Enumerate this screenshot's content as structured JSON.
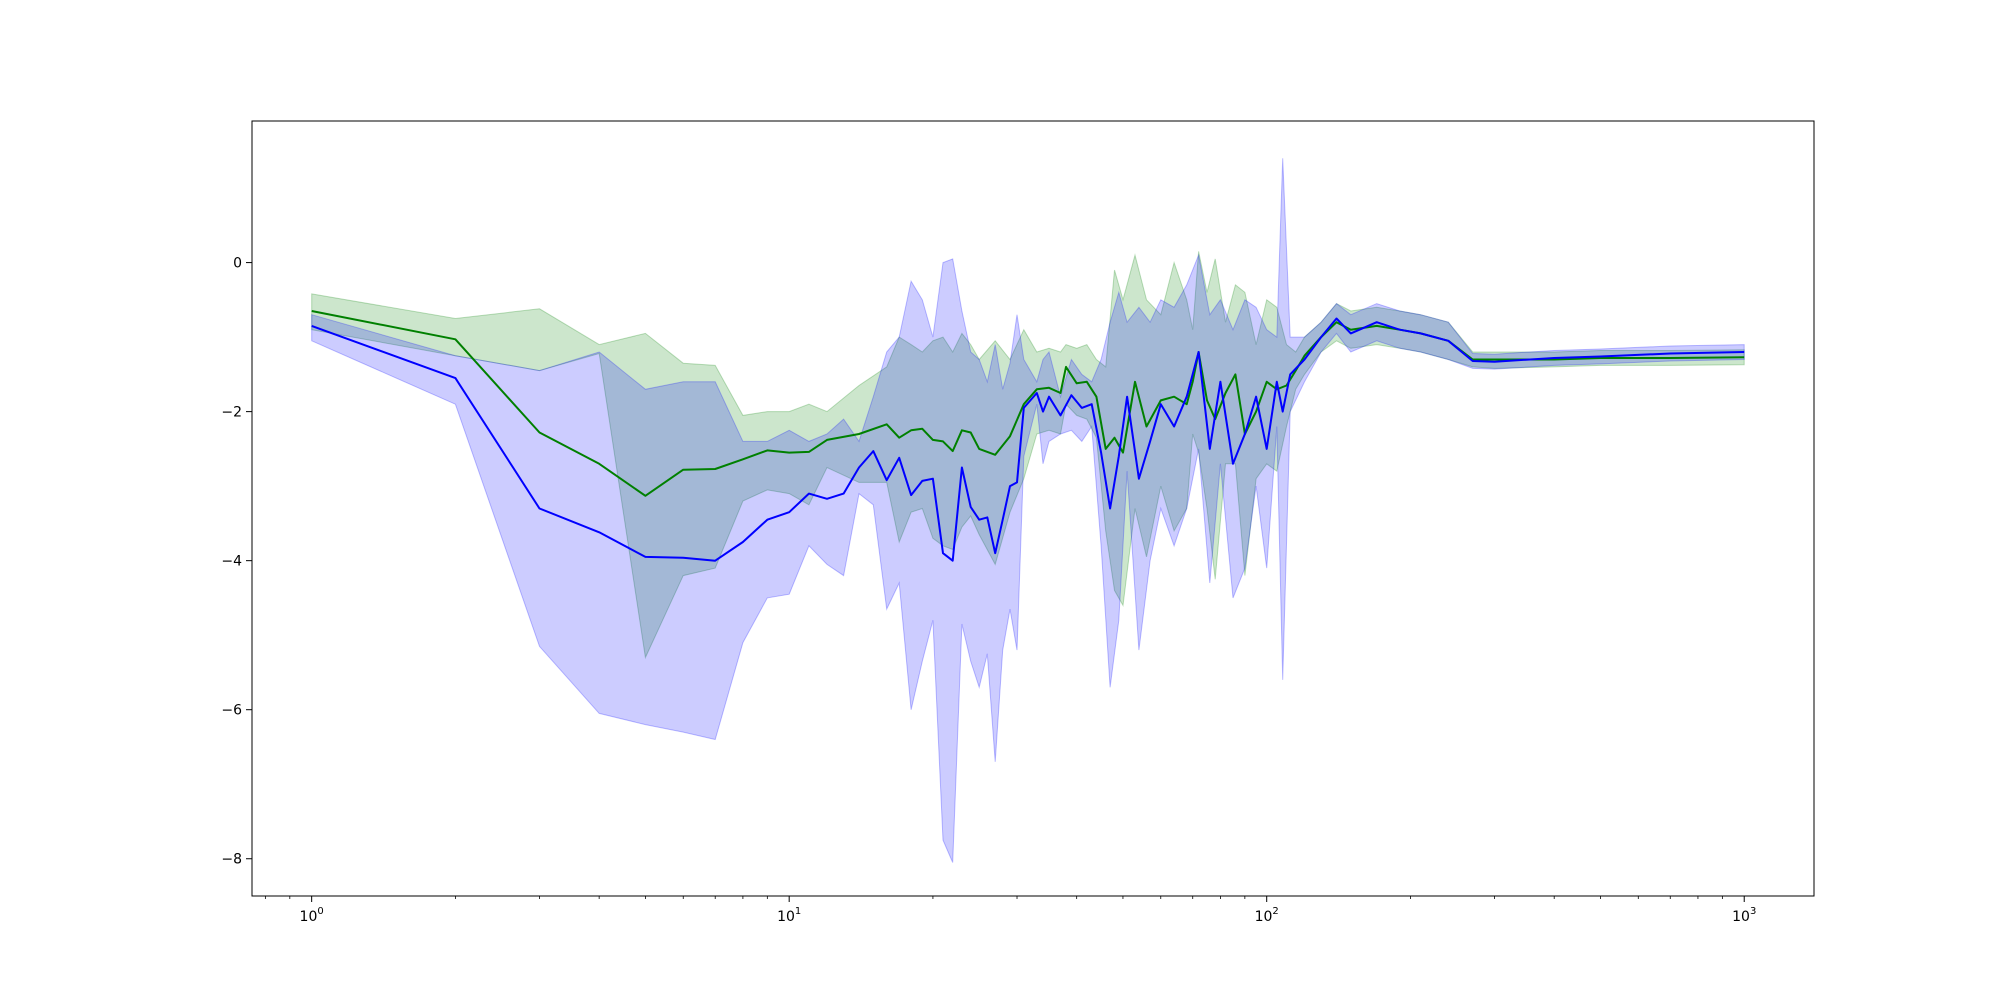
{
  "chart_data": {
    "type": "line",
    "title": "",
    "xlabel": "",
    "ylabel": "",
    "xscale": "log",
    "xlim": [
      0.75,
      1400
    ],
    "ylim": [
      -8.5,
      1.9
    ],
    "grid": false,
    "legend": "none",
    "x_ticks": [
      {
        "value": 1,
        "base": "10",
        "exp": "0"
      },
      {
        "value": 10,
        "base": "10",
        "exp": "1"
      },
      {
        "value": 100,
        "base": "10",
        "exp": "2"
      },
      {
        "value": 1000,
        "base": "10",
        "exp": "3"
      }
    ],
    "y_ticks": [
      {
        "value": 0,
        "label": "0"
      },
      {
        "value": -2,
        "label": "−2"
      },
      {
        "value": -4,
        "label": "−4"
      },
      {
        "value": -6,
        "label": "−6"
      },
      {
        "value": -8,
        "label": "−8"
      }
    ],
    "series": [
      {
        "color": "#008000",
        "band_color": "#008000",
        "band_opacity": 0.2,
        "points": [
          [
            1,
            -0.65,
            -0.42,
            -0.9
          ],
          [
            2,
            -1.03,
            -0.75,
            -1.25
          ],
          [
            3,
            -2.28,
            -0.62,
            -1.45
          ],
          [
            4,
            -2.7,
            -1.1,
            -1.22
          ],
          [
            5,
            -3.13,
            -0.95,
            -5.3
          ],
          [
            6,
            -2.78,
            -1.35,
            -4.2
          ],
          [
            7,
            -2.77,
            -1.38,
            -4.1
          ],
          [
            8,
            -2.64,
            -2.05,
            -3.2
          ],
          [
            9,
            -2.52,
            -2.0,
            -3.05
          ],
          [
            10,
            -2.55,
            -2.0,
            -3.1
          ],
          [
            11,
            -2.54,
            -1.9,
            -3.25
          ],
          [
            12,
            -2.38,
            -2.0,
            -2.75
          ],
          [
            14,
            -2.3,
            -1.65,
            -2.95
          ],
          [
            16,
            -2.17,
            -1.4,
            -2.95
          ],
          [
            17,
            -2.35,
            -1.0,
            -3.75
          ],
          [
            18,
            -2.25,
            -1.1,
            -3.35
          ],
          [
            19,
            -2.23,
            -1.2,
            -3.3
          ],
          [
            20,
            -2.38,
            -1.05,
            -3.7
          ],
          [
            21,
            -2.4,
            -1.0,
            -3.8
          ],
          [
            22,
            -2.53,
            -1.2,
            -3.85
          ],
          [
            23,
            -2.25,
            -0.95,
            -3.55
          ],
          [
            24,
            -2.28,
            -1.1,
            -3.4
          ],
          [
            25,
            -2.5,
            -1.3,
            -3.65
          ],
          [
            27,
            -2.58,
            -1.05,
            -4.05
          ],
          [
            29,
            -2.33,
            -1.3,
            -3.35
          ],
          [
            31,
            -1.9,
            -0.9,
            -2.9
          ],
          [
            33,
            -1.7,
            -1.2,
            -2.3
          ],
          [
            35,
            -1.68,
            -1.15,
            -2.25
          ],
          [
            37,
            -1.75,
            -1.2,
            -2.3
          ],
          [
            38,
            -1.4,
            -1.1,
            -1.9
          ],
          [
            40,
            -1.62,
            -1.15,
            -2.05
          ],
          [
            42,
            -1.6,
            -1.1,
            -2.1
          ],
          [
            44,
            -1.8,
            -1.3,
            -2.35
          ],
          [
            46,
            -2.5,
            -1.4,
            -3.6
          ],
          [
            48,
            -2.35,
            -0.1,
            -4.4
          ],
          [
            50,
            -2.55,
            -0.5,
            -4.6
          ],
          [
            53,
            -1.6,
            0.1,
            -3.3
          ],
          [
            56,
            -2.2,
            -0.5,
            -3.95
          ],
          [
            60,
            -1.85,
            -0.7,
            -3.0
          ],
          [
            64,
            -1.8,
            0.0,
            -3.6
          ],
          [
            68,
            -1.9,
            -0.5,
            -3.3
          ],
          [
            70,
            -1.6,
            -0.9,
            -2.3
          ],
          [
            72,
            -1.2,
            0.15,
            -2.55
          ],
          [
            75,
            -1.85,
            -0.4,
            -3.3
          ],
          [
            78,
            -2.1,
            0.05,
            -4.25
          ],
          [
            82,
            -1.75,
            -0.8,
            -2.7
          ],
          [
            86,
            -1.5,
            -0.3,
            -2.7
          ],
          [
            90,
            -2.3,
            -0.4,
            -4.2
          ],
          [
            95,
            -2.0,
            -1.1,
            -2.9
          ],
          [
            100,
            -1.6,
            -0.5,
            -2.7
          ],
          [
            105,
            -1.7,
            -0.6,
            -2.8
          ],
          [
            110,
            -1.65,
            -1.1,
            -2.2
          ],
          [
            115,
            -1.45,
            -1.2,
            -1.7
          ],
          [
            120,
            -1.25,
            -1.0,
            -1.5
          ],
          [
            130,
            -1.0,
            -0.8,
            -1.2
          ],
          [
            140,
            -0.8,
            -0.55,
            -1.05
          ],
          [
            150,
            -0.9,
            -0.65,
            -1.15
          ],
          [
            170,
            -0.85,
            -0.6,
            -1.1
          ],
          [
            190,
            -0.9,
            -0.65,
            -1.15
          ],
          [
            210,
            -0.95,
            -0.7,
            -1.2
          ],
          [
            240,
            -1.05,
            -0.8,
            -1.3
          ],
          [
            270,
            -1.3,
            -1.2,
            -1.4
          ],
          [
            300,
            -1.3,
            -1.2,
            -1.42
          ],
          [
            400,
            -1.3,
            -1.2,
            -1.4
          ],
          [
            500,
            -1.28,
            -1.18,
            -1.38
          ],
          [
            700,
            -1.28,
            -1.18,
            -1.38
          ],
          [
            1000,
            -1.27,
            -1.17,
            -1.37
          ]
        ]
      },
      {
        "color": "#0000ff",
        "band_color": "#0000ff",
        "band_opacity": 0.2,
        "points": [
          [
            1,
            -0.85,
            -0.7,
            -1.05
          ],
          [
            2,
            -1.55,
            -1.25,
            -1.9
          ],
          [
            3,
            -3.3,
            -1.45,
            -5.15
          ],
          [
            4,
            -3.62,
            -1.2,
            -6.05
          ],
          [
            5,
            -3.95,
            -1.7,
            -6.2
          ],
          [
            6,
            -3.96,
            -1.6,
            -6.3
          ],
          [
            7,
            -4.0,
            -1.6,
            -6.4
          ],
          [
            8,
            -3.75,
            -2.4,
            -5.1
          ],
          [
            9,
            -3.45,
            -2.4,
            -4.5
          ],
          [
            10,
            -3.35,
            -2.25,
            -4.45
          ],
          [
            11,
            -3.1,
            -2.4,
            -3.8
          ],
          [
            12,
            -3.17,
            -2.3,
            -4.05
          ],
          [
            13,
            -3.1,
            -2.1,
            -4.2
          ],
          [
            14,
            -2.75,
            -2.4,
            -3.1
          ],
          [
            15,
            -2.53,
            -1.8,
            -3.25
          ],
          [
            16,
            -2.92,
            -1.2,
            -4.65
          ],
          [
            17,
            -2.62,
            -1.0,
            -4.3
          ],
          [
            18,
            -3.12,
            -0.25,
            -6.0
          ],
          [
            19,
            -2.93,
            -0.5,
            -5.35
          ],
          [
            20,
            -2.9,
            -1.0,
            -4.8
          ],
          [
            21,
            -3.9,
            0.0,
            -7.75
          ],
          [
            22,
            -4.0,
            0.05,
            -8.05
          ],
          [
            23,
            -2.75,
            -0.65,
            -4.85
          ],
          [
            24,
            -3.28,
            -1.2,
            -5.35
          ],
          [
            25,
            -3.45,
            -1.3,
            -5.7
          ],
          [
            26,
            -3.42,
            -1.6,
            -5.25
          ],
          [
            27,
            -3.9,
            -1.1,
            -6.7
          ],
          [
            28,
            -3.45,
            -1.7,
            -5.2
          ],
          [
            29,
            -3.0,
            -1.35,
            -4.65
          ],
          [
            30,
            -2.95,
            -0.7,
            -5.2
          ],
          [
            31,
            -1.95,
            -1.3,
            -2.6
          ],
          [
            33,
            -1.75,
            -1.6,
            -1.9
          ],
          [
            34,
            -2.0,
            -1.3,
            -2.7
          ],
          [
            35,
            -1.8,
            -1.2,
            -2.4
          ],
          [
            37,
            -2.05,
            -1.8,
            -2.3
          ],
          [
            39,
            -1.78,
            -1.3,
            -2.25
          ],
          [
            41,
            -1.95,
            -1.5,
            -2.4
          ],
          [
            43,
            -1.9,
            -1.6,
            -2.2
          ],
          [
            45,
            -2.55,
            -1.3,
            -3.8
          ],
          [
            47,
            -3.3,
            -0.8,
            -5.7
          ],
          [
            49,
            -2.6,
            -0.4,
            -4.8
          ],
          [
            51,
            -1.8,
            -0.8,
            -2.8
          ],
          [
            54,
            -2.9,
            -0.6,
            -5.2
          ],
          [
            57,
            -2.4,
            -0.8,
            -4.0
          ],
          [
            60,
            -1.9,
            -0.5,
            -3.3
          ],
          [
            64,
            -2.2,
            -0.6,
            -3.8
          ],
          [
            68,
            -1.8,
            -0.3,
            -3.3
          ],
          [
            72,
            -1.2,
            0.1,
            -2.5
          ],
          [
            76,
            -2.5,
            -0.7,
            -4.3
          ],
          [
            80,
            -1.6,
            -0.5,
            -2.7
          ],
          [
            85,
            -2.7,
            -0.9,
            -4.5
          ],
          [
            90,
            -2.3,
            -0.5,
            -4.1
          ],
          [
            95,
            -1.8,
            -0.6,
            -3.0
          ],
          [
            100,
            -2.5,
            -0.9,
            -4.1
          ],
          [
            105,
            -1.6,
            -1.0,
            -2.2
          ],
          [
            108,
            -2.0,
            1.4,
            -5.6
          ],
          [
            112,
            -1.5,
            -1.0,
            -2.0
          ],
          [
            120,
            -1.3,
            -1.0,
            -1.6
          ],
          [
            130,
            -1.0,
            -0.8,
            -1.2
          ],
          [
            140,
            -0.75,
            -0.55,
            -0.95
          ],
          [
            150,
            -0.95,
            -0.7,
            -1.2
          ],
          [
            170,
            -0.8,
            -0.55,
            -1.05
          ],
          [
            190,
            -0.9,
            -0.65,
            -1.15
          ],
          [
            210,
            -0.95,
            -0.7,
            -1.2
          ],
          [
            240,
            -1.05,
            -0.8,
            -1.3
          ],
          [
            270,
            -1.32,
            -1.22,
            -1.42
          ],
          [
            300,
            -1.33,
            -1.23,
            -1.43
          ],
          [
            400,
            -1.28,
            -1.18,
            -1.38
          ],
          [
            500,
            -1.26,
            -1.16,
            -1.36
          ],
          [
            700,
            -1.22,
            -1.12,
            -1.32
          ],
          [
            1000,
            -1.2,
            -1.1,
            -1.3
          ]
        ]
      }
    ]
  }
}
